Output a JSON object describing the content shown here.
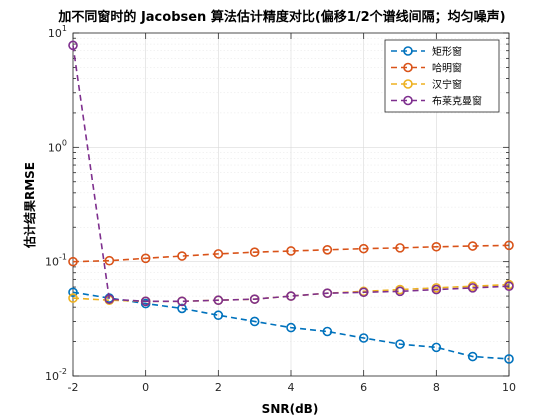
{
  "chart_data": {
    "type": "line",
    "title": "加不同窗时的 Jacobsen 算法估计精度对比(偏移1/2个谱线间隔；均匀噪声)",
    "xlabel": "SNR(dB)",
    "ylabel": "估计结果RMSE",
    "x": [
      -2,
      -1,
      0,
      1,
      2,
      3,
      4,
      5,
      6,
      7,
      8,
      9,
      10
    ],
    "xlim": [
      -2,
      10
    ],
    "xticks": [
      "-2",
      "0",
      "2",
      "4",
      "6",
      "8",
      "10"
    ],
    "xtick_values": [
      -2,
      0,
      2,
      4,
      6,
      8,
      10
    ],
    "ylim": [
      0.01,
      10
    ],
    "yscale": "log",
    "ytick_values": [
      0.01,
      0.1,
      1,
      10
    ],
    "ytick_labels": [
      {
        "base": "10",
        "exp": "-2"
      },
      {
        "base": "10",
        "exp": "-1"
      },
      {
        "base": "10",
        "exp": "0"
      },
      {
        "base": "10",
        "exp": "1"
      }
    ],
    "grid": true,
    "legend_position": "top-right",
    "series": [
      {
        "name": "矩形窗",
        "color": "#0072BD",
        "values": [
          0.054,
          0.048,
          0.043,
          0.039,
          0.034,
          0.03,
          0.0265,
          0.0245,
          0.0215,
          0.019,
          0.0178,
          0.0148,
          0.0141
        ]
      },
      {
        "name": "哈明窗",
        "color": "#D95319",
        "values": [
          0.1,
          0.102,
          0.107,
          0.112,
          0.117,
          0.121,
          0.124,
          0.127,
          0.13,
          0.132,
          0.135,
          0.137,
          0.139
        ]
      },
      {
        "name": "汉宁窗",
        "color": "#EDB120",
        "values": [
          0.048,
          0.046,
          0.045,
          0.045,
          0.046,
          0.047,
          0.05,
          0.053,
          0.055,
          0.057,
          0.059,
          0.061,
          0.063
        ]
      },
      {
        "name": "布莱克曼窗",
        "color": "#7E2F8E",
        "values": [
          7.8,
          0.047,
          0.045,
          0.045,
          0.046,
          0.047,
          0.05,
          0.053,
          0.054,
          0.055,
          0.057,
          0.059,
          0.061
        ]
      }
    ]
  }
}
